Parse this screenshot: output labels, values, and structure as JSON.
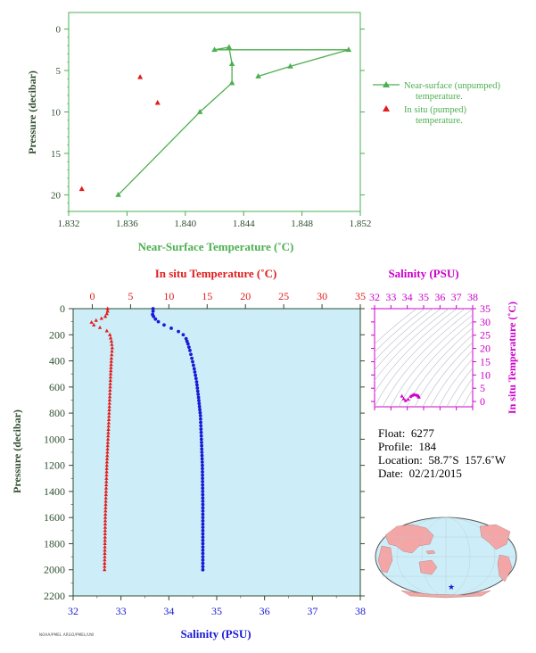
{
  "colors": {
    "unpumped": "#4caf50",
    "pumped": "#e11d1d",
    "salinity": "#1a1ad6",
    "temperature": "#e11d1d",
    "ts_accent": "#cc00cc",
    "axis_dark": "#2f4f2f",
    "panel_bg": "#cdeef8"
  },
  "chart_data": [
    {
      "type": "scatter",
      "xlabel": "Near-Surface Temperature (˚C)",
      "ylabel": "Pressure (decibar)",
      "xlim": [
        1.832,
        1.852
      ],
      "ylim": [
        22,
        -2
      ],
      "xticks": [
        "1.832",
        "1.836",
        "1.840",
        "1.844",
        "1.848",
        "1.852"
      ],
      "yticks": [
        "0",
        "5",
        "10",
        "15",
        "20"
      ],
      "legend": [
        "Near-surface (unpumped) temperature.",
        "In situ (pumped) temperature."
      ],
      "series": [
        {
          "name": "Near-surface (unpumped) temperature.",
          "mode": "line+markers",
          "points": [
            [
              1.8354,
              20.0
            ],
            [
              1.841,
              10.0
            ],
            [
              1.8432,
              6.5
            ],
            [
              1.8432,
              4.2
            ],
            [
              1.843,
              2.2
            ],
            [
              1.842,
              2.5
            ],
            [
              1.8512,
              2.5
            ],
            [
              1.8472,
              4.5
            ],
            [
              1.845,
              5.7
            ]
          ]
        },
        {
          "name": "In situ (pumped) temperature.",
          "mode": "markers",
          "points": [
            [
              1.8369,
              5.8
            ],
            [
              1.8381,
              8.9
            ],
            [
              1.8329,
              19.3
            ]
          ]
        }
      ]
    },
    {
      "type": "scatter",
      "xlabel": "Salinity (PSU)",
      "ylabel": "Pressure (decibar)",
      "top_xlabel": "In situ Temperature (˚C)",
      "xlim": [
        32,
        38
      ],
      "ylim": [
        2200,
        0
      ],
      "xticks": [
        "32",
        "33",
        "34",
        "35",
        "36",
        "37",
        "38"
      ],
      "top_xticks": [
        "0",
        "5",
        "10",
        "15",
        "20",
        "25",
        "30",
        "35"
      ],
      "top_xlim": [
        -2.5,
        35
      ],
      "yticks": [
        "0",
        "200",
        "400",
        "600",
        "800",
        "1000",
        "1200",
        "1400",
        "1600",
        "1800",
        "2000",
        "2200"
      ],
      "series": [
        {
          "name": "Salinity",
          "axis": "bottom",
          "points": [
            [
              33.67,
              0
            ],
            [
              33.67,
              20
            ],
            [
              33.66,
              45
            ],
            [
              33.68,
              60
            ],
            [
              33.72,
              80
            ],
            [
              33.78,
              100
            ],
            [
              33.9,
              125
            ],
            [
              34.05,
              150
            ],
            [
              34.2,
              175
            ],
            [
              34.3,
              200
            ],
            [
              34.36,
              230
            ],
            [
              34.4,
              270
            ],
            [
              34.44,
              320
            ],
            [
              34.48,
              380
            ],
            [
              34.53,
              460
            ],
            [
              34.58,
              560
            ],
            [
              34.62,
              680
            ],
            [
              34.66,
              820
            ],
            [
              34.68,
              1000
            ],
            [
              34.7,
              1200
            ],
            [
              34.71,
              1500
            ],
            [
              34.71,
              1800
            ],
            [
              34.71,
              2000
            ]
          ]
        },
        {
          "name": "In situ Temperature",
          "axis": "top",
          "points": [
            [
              2.0,
              0
            ],
            [
              2.0,
              20
            ],
            [
              1.9,
              40
            ],
            [
              1.7,
              60
            ],
            [
              1.2,
              75
            ],
            [
              0.5,
              90
            ],
            [
              -0.1,
              105
            ],
            [
              0.2,
              125
            ],
            [
              1.0,
              145
            ],
            [
              1.9,
              170
            ],
            [
              2.3,
              200
            ],
            [
              2.5,
              250
            ],
            [
              2.6,
              300
            ],
            [
              2.5,
              380
            ],
            [
              2.4,
              500
            ],
            [
              2.3,
              650
            ],
            [
              2.2,
              800
            ],
            [
              2.05,
              1000
            ],
            [
              1.9,
              1200
            ],
            [
              1.8,
              1400
            ],
            [
              1.7,
              1600
            ],
            [
              1.65,
              1800
            ],
            [
              1.6,
              2000
            ]
          ]
        }
      ]
    },
    {
      "type": "scatter",
      "xlabel": "Salinity (PSU)",
      "ylabel": "In situ Temperature (˚C)",
      "xlim": [
        32,
        38
      ],
      "ylim": [
        -2,
        35
      ],
      "xticks": [
        "32",
        "33",
        "34",
        "35",
        "36",
        "37",
        "38"
      ],
      "yticks": [
        "0",
        "5",
        "10",
        "15",
        "20",
        "25",
        "30",
        "35"
      ],
      "series": [
        {
          "name": "T-S",
          "points": [
            [
              33.67,
              2.0
            ],
            [
              33.78,
              1.0
            ],
            [
              33.9,
              0.3
            ],
            [
              34.05,
              0.8
            ],
            [
              34.2,
              1.9
            ],
            [
              34.3,
              2.3
            ],
            [
              34.4,
              2.6
            ],
            [
              34.5,
              2.5
            ],
            [
              34.6,
              2.3
            ],
            [
              34.68,
              2.05
            ],
            [
              34.71,
              1.7
            ],
            [
              34.71,
              1.6
            ]
          ]
        }
      ]
    }
  ],
  "float_info": {
    "float": "Float:  6277",
    "profile": "Profile:  184",
    "location": "Location:  58.7˚S  157.6˚W",
    "date": "Date:  02/21/2015"
  },
  "credit": "NOAA/PMEL ARGO/PMEL/UW"
}
